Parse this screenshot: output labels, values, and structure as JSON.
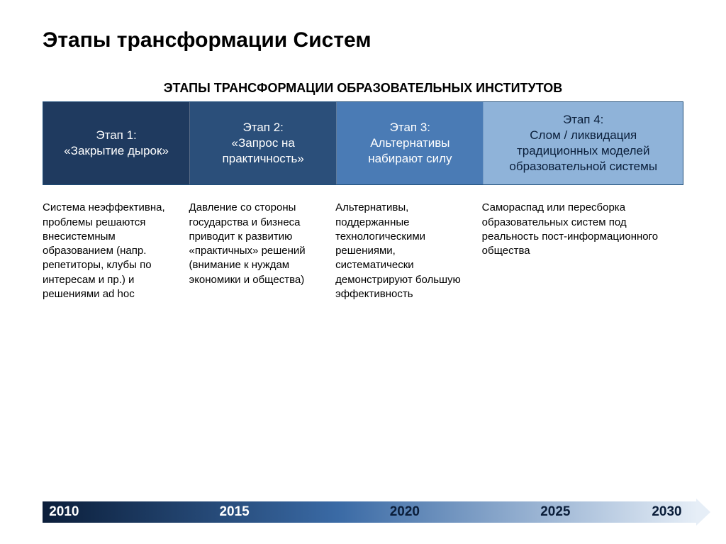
{
  "title": "Этапы трансформации Систем",
  "subtitle": "ЭТАПЫ ТРАНСФОРМАЦИИ ОБРАЗОВАТЕЛЬНЫХ ИНСТИТУТОВ",
  "stages": [
    {
      "label_line1": "Этап 1:",
      "label_line2": "«Закрытие дырок»",
      "bg_color": "#1f3a5f",
      "text_color": "#ffffff",
      "cell_class": "dark1",
      "description": "Система неэффективна, проблемы решаются внесистемным образованием (напр. репетиторы, клубы по интересам и пр.) и решениями ad hoc"
    },
    {
      "label_line1": "Этап 2:",
      "label_line2": "«Запрос на практичность»",
      "bg_color": "#2b4f7a",
      "text_color": "#ffffff",
      "cell_class": "dark2",
      "description": "Давление со стороны государства и бизнеса приводит к развитию «практичных» решений (внимание к нуждам экономики и общества)"
    },
    {
      "label_line1": "Этап 3:",
      "label_line2": "Альтернативы набирают силу",
      "bg_color": "#4a7bb5",
      "text_color": "#ffffff",
      "cell_class": "mid",
      "description": "Альтернативы, поддержанные технологическими решениями, систематически демонстрируют большую эффективность"
    },
    {
      "label_line1": "Этап 4:",
      "label_line2": "Слом / ликвидация традиционных моделей образовательной системы",
      "bg_color": "#8fb3d9",
      "text_color": "#0a1e3a",
      "cell_class": "light",
      "description": "Самораспад или пересборка образовательных систем под реальность пост-информационного общества"
    }
  ],
  "timeline": {
    "gradient_from": "#0b1e3a",
    "gradient_mid": "#3a6aa5",
    "gradient_to": "#e6eef7",
    "ticks": [
      {
        "label": "2010",
        "left_pct": 1,
        "text_class": "light"
      },
      {
        "label": "2015",
        "left_pct": 27,
        "text_class": "light"
      },
      {
        "label": "2020",
        "left_pct": 53,
        "text_class": "dark"
      },
      {
        "label": "2025",
        "left_pct": 76,
        "text_class": "dark"
      },
      {
        "label": "2030",
        "left_pct": 93,
        "text_class": "dark"
      }
    ]
  }
}
